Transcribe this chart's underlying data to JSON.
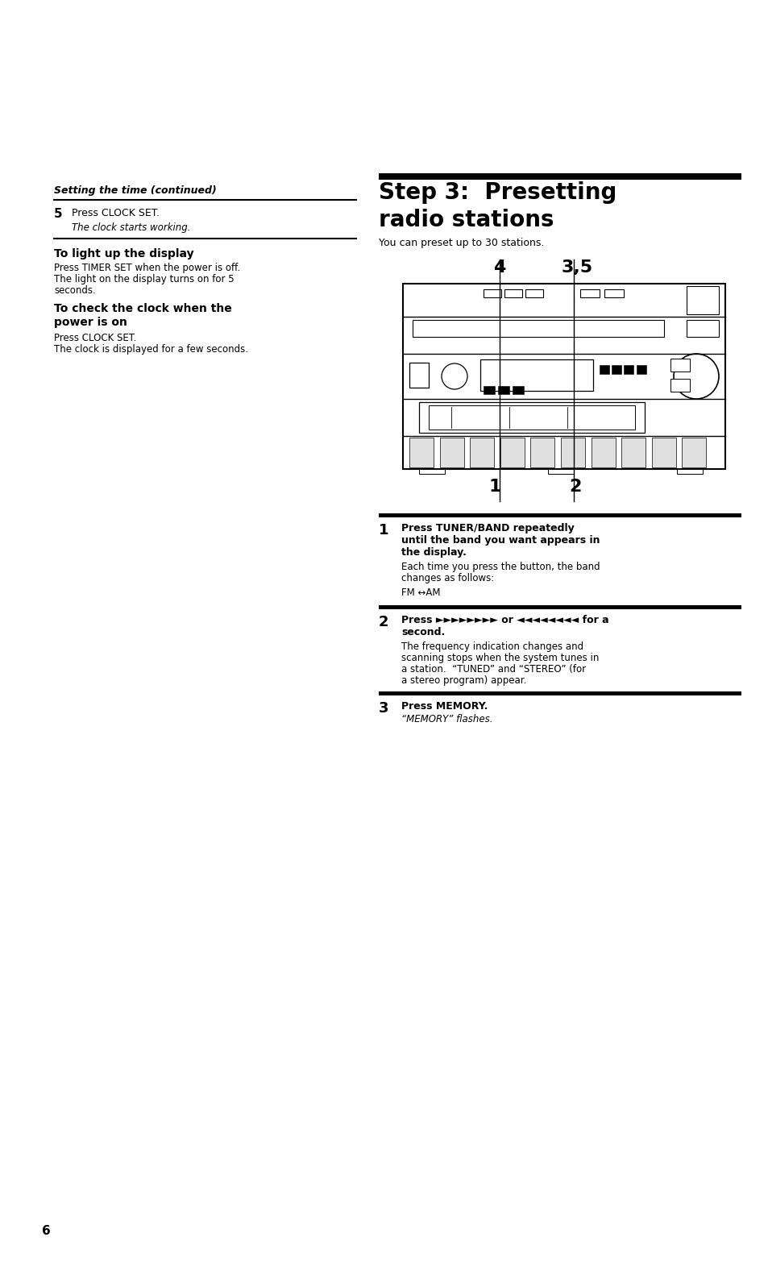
{
  "bg_color": "#ffffff",
  "text_color": "#000000",
  "page_number": "6",
  "left_section_title": "Setting the time (continued)",
  "step5_num": "5",
  "step5_text1": "Press CLOCK SET.",
  "step5_text2": "The clock starts working.",
  "subsection1_title": "To light up the display",
  "subsection1_body1": "Press TIMER SET when the power is off.",
  "subsection1_body2": "The light on the display turns on for 5",
  "subsection1_body3": "seconds.",
  "subsection2_title1": "To check the clock when the",
  "subsection2_title2": "power is on",
  "subsection2_body1": "Press CLOCK SET.",
  "subsection2_body2": "The clock is displayed for a few seconds.",
  "right_section_title1": "Step 3:  Presetting",
  "right_section_title2": "radio stations",
  "right_intro": "You can preset up to 30 stations.",
  "diagram_label_4": "4",
  "diagram_label_35": "3,5",
  "diagram_label_1": "1",
  "diagram_label_2": "2",
  "step1_num": "1",
  "step1_bold1": "Press TUNER/BAND repeatedly",
  "step1_bold2": "until the band you want appears in",
  "step1_bold3": "the display.",
  "step1_normal1": "Each time you press the button, the band",
  "step1_normal2": "changes as follows:",
  "step1_formula": "FM ↔AM",
  "step2_num": "2",
  "step2_bold1": "Press ►►►►►►►► or ◄◄◄◄◄◄◄◄ for a",
  "step2_bold2": "second.",
  "step2_normal1": "The frequency indication changes and",
  "step2_normal2": "scanning stops when the system tunes in",
  "step2_normal3": "a station.  “TUNED” and “STEREO” (for",
  "step2_normal4": "a stereo program) appear.",
  "step3_num": "3",
  "step3_bold1": "Press MEMORY.",
  "step3_normal1": "“MEMORY” flashes."
}
